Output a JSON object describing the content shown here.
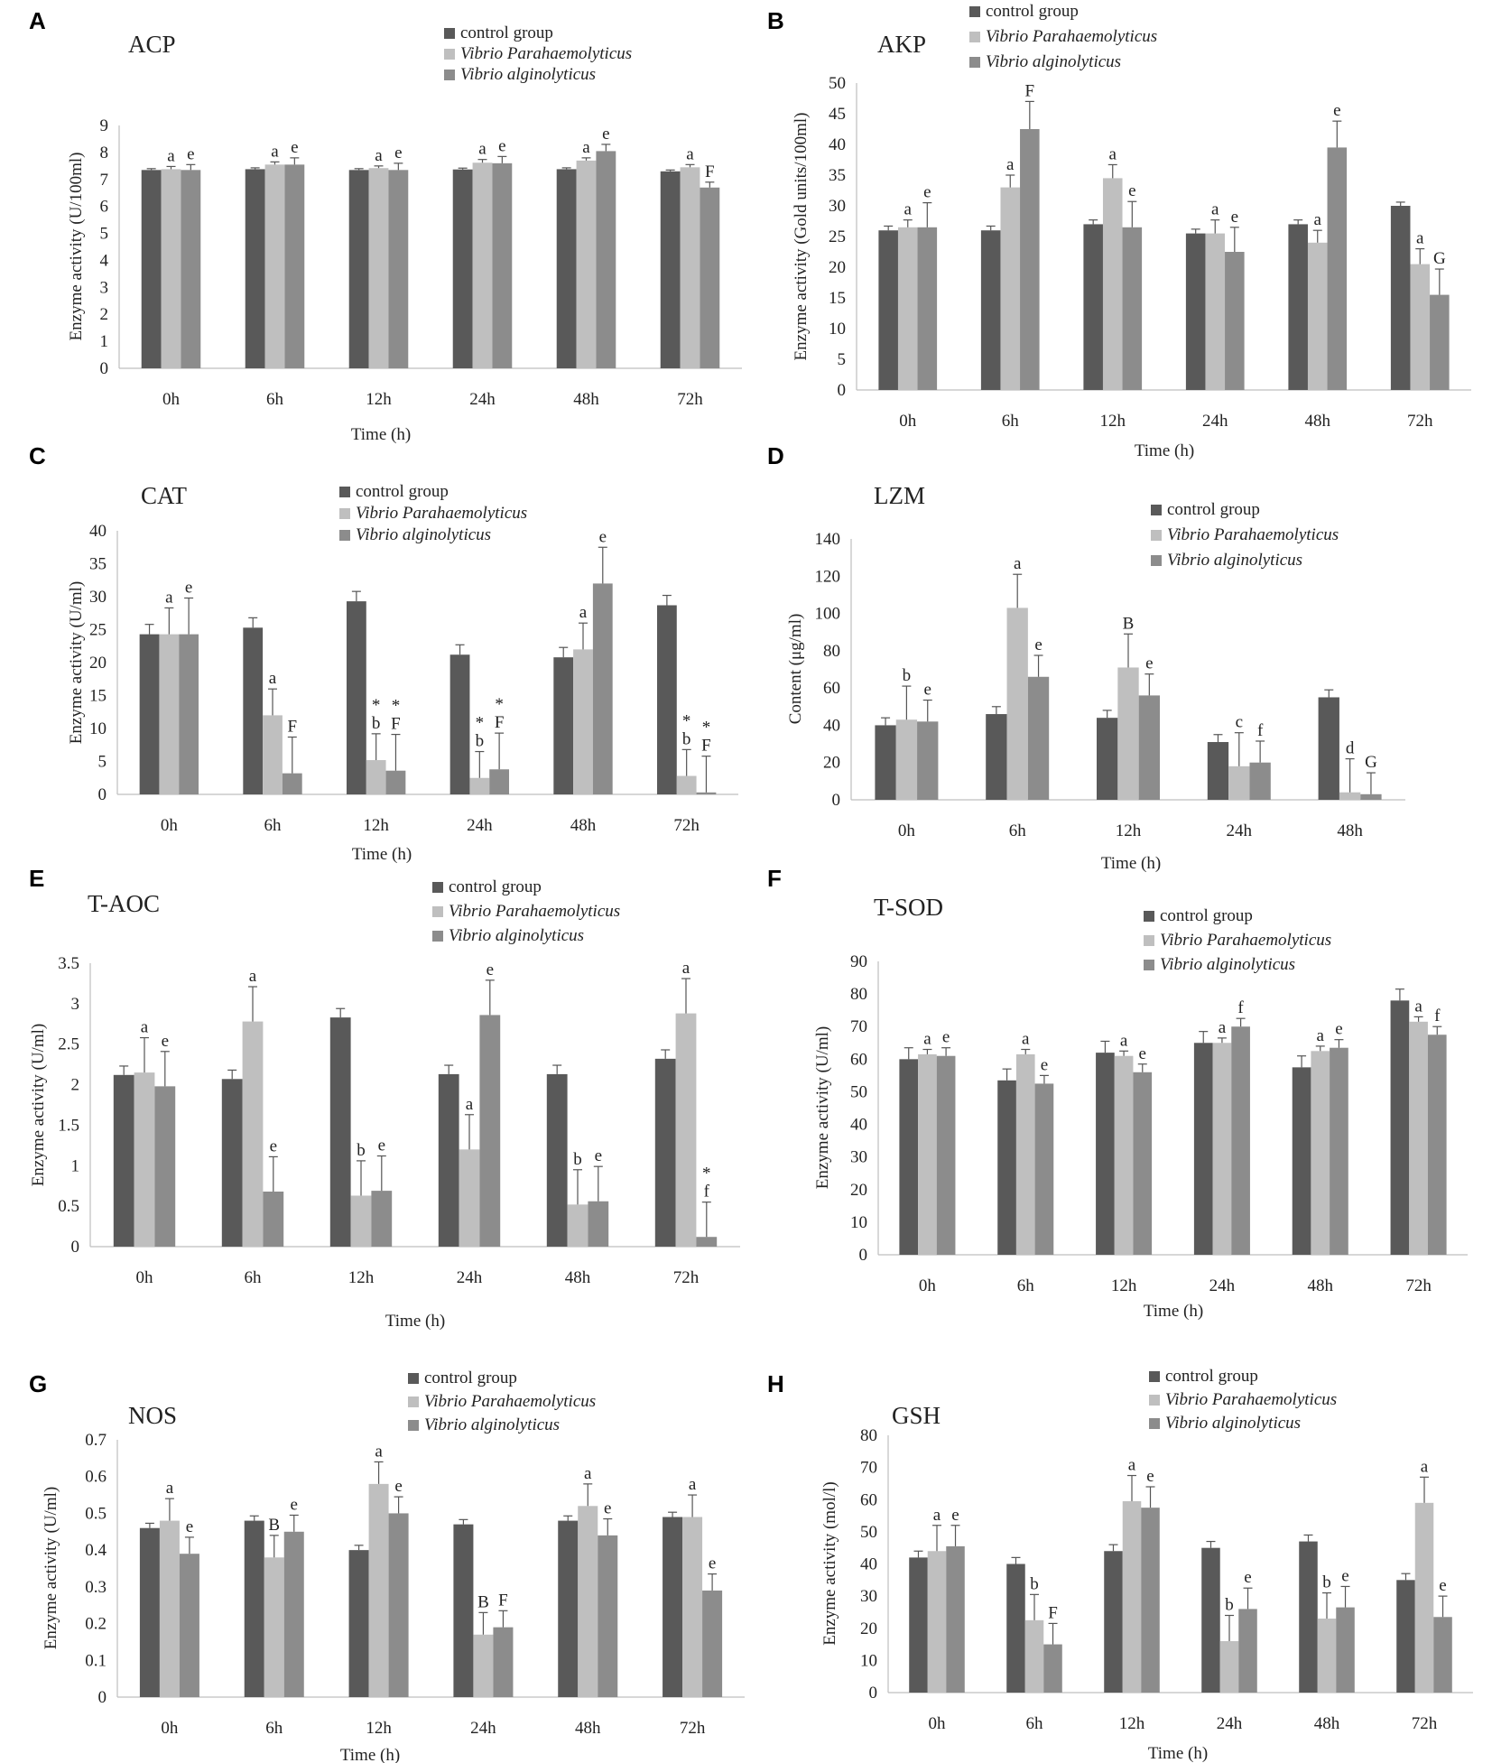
{
  "figure": {
    "series_names": [
      "control group",
      "Vibrio Parahaemolyticus",
      "Vibrio alginolyticus"
    ],
    "series_colors": [
      "#595959",
      "#bfbfbf",
      "#8c8c8c"
    ],
    "xlabel_common": "Time (h)"
  },
  "chart_data": [
    {
      "panel": "A",
      "type": "bar",
      "title": "ACP",
      "categories": [
        "0h",
        "6h",
        "12h",
        "24h",
        "48h",
        "72h"
      ],
      "ylabel": "Enzyme activity (U/100ml)",
      "xlabel": "Time (h)",
      "ylim": [
        0,
        9
      ],
      "yticks": [
        0,
        1,
        2,
        3,
        4,
        5,
        6,
        7,
        8,
        9
      ],
      "series": [
        {
          "name": "control group",
          "values": [
            7.35,
            7.38,
            7.35,
            7.37,
            7.38,
            7.3
          ],
          "errors": [
            0.05,
            0.05,
            0.05,
            0.05,
            0.05,
            0.05
          ],
          "labels": [
            "",
            "",
            "",
            "",
            "",
            ""
          ]
        },
        {
          "name": "Vibrio Parahaemolyticus",
          "values": [
            7.38,
            7.55,
            7.42,
            7.62,
            7.7,
            7.45
          ],
          "errors": [
            0.1,
            0.1,
            0.08,
            0.12,
            0.1,
            0.1
          ],
          "labels": [
            "a",
            "a",
            "a",
            "a",
            "a",
            "a"
          ]
        },
        {
          "name": "Vibrio alginolyticus",
          "values": [
            7.35,
            7.55,
            7.35,
            7.6,
            8.05,
            6.7
          ],
          "errors": [
            0.2,
            0.25,
            0.25,
            0.25,
            0.25,
            0.2
          ],
          "labels": [
            "e",
            "e",
            "e",
            "e",
            "e",
            "F"
          ]
        }
      ]
    },
    {
      "panel": "B",
      "type": "bar",
      "title": "AKP",
      "categories": [
        "0h",
        "6h",
        "12h",
        "24h",
        "48h",
        "72h"
      ],
      "ylabel": "Enzyme activity (Gold units/100ml)",
      "xlabel": "Time (h)",
      "ylim": [
        0,
        50
      ],
      "yticks": [
        0,
        5,
        10,
        15,
        20,
        25,
        30,
        35,
        40,
        45,
        50
      ],
      "series": [
        {
          "name": "control group",
          "values": [
            26,
            26,
            27,
            25.5,
            27,
            30
          ],
          "errors": [
            0.7,
            0.7,
            0.7,
            0.7,
            0.7,
            0.6
          ],
          "labels": [
            "",
            "",
            "",
            "",
            "",
            ""
          ]
        },
        {
          "name": "Vibrio Parahaemolyticus",
          "values": [
            26.5,
            33,
            34.5,
            25.5,
            24,
            20.5
          ],
          "errors": [
            1.2,
            2,
            2.2,
            2.2,
            2,
            2.5
          ],
          "labels": [
            "a",
            "a",
            "a",
            "a",
            "a",
            "a"
          ]
        },
        {
          "name": "Vibrio alginolyticus",
          "values": [
            26.5,
            42.5,
            26.5,
            22.5,
            39.5,
            15.5
          ],
          "errors": [
            4,
            4.5,
            4.2,
            4,
            4.3,
            4.2
          ],
          "labels": [
            "e",
            "F",
            "e",
            "e",
            "e",
            "G"
          ]
        }
      ]
    },
    {
      "panel": "C",
      "type": "bar",
      "title": "CAT",
      "categories": [
        "0h",
        "6h",
        "12h",
        "24h",
        "48h",
        "72h"
      ],
      "ylabel": "Enzyme activity (U/ml)",
      "xlabel": "Time (h)",
      "ylim": [
        0,
        40
      ],
      "yticks": [
        0,
        5,
        10,
        15,
        20,
        25,
        30,
        35,
        40
      ],
      "series": [
        {
          "name": "control group",
          "values": [
            24.3,
            25.3,
            29.3,
            21.2,
            20.8,
            28.7
          ],
          "errors": [
            1.5,
            1.5,
            1.5,
            1.5,
            1.5,
            1.5
          ],
          "labels": [
            "",
            "",
            "",
            "",
            "",
            ""
          ]
        },
        {
          "name": "Vibrio Parahaemolyticus",
          "values": [
            24.3,
            12,
            5.2,
            2.5,
            22,
            2.8
          ],
          "errors": [
            4,
            4,
            4,
            4,
            4,
            4
          ],
          "labels": [
            "a",
            "a",
            "b",
            "b",
            "a",
            "b"
          ],
          "stars": [
            false,
            false,
            true,
            true,
            false,
            true
          ]
        },
        {
          "name": "Vibrio alginolyticus",
          "values": [
            24.3,
            3.2,
            3.6,
            3.8,
            32,
            0.3
          ],
          "errors": [
            5.5,
            5.5,
            5.5,
            5.5,
            5.5,
            5.5
          ],
          "labels": [
            "e",
            "F",
            "F",
            "F",
            "e",
            "F"
          ],
          "stars": [
            false,
            false,
            true,
            true,
            false,
            true
          ]
        }
      ]
    },
    {
      "panel": "D",
      "type": "bar",
      "title": "LZM",
      "categories": [
        "0h",
        "6h",
        "12h",
        "24h",
        "48h"
      ],
      "ylabel": "Content (μg/ml)",
      "xlabel": "Time (h)",
      "ylim": [
        0,
        140
      ],
      "yticks": [
        0,
        20,
        40,
        60,
        80,
        100,
        120,
        140
      ],
      "series": [
        {
          "name": "control group",
          "values": [
            40,
            46,
            44,
            31,
            55
          ],
          "errors": [
            4,
            4,
            4,
            4,
            4
          ],
          "labels": [
            "",
            "",
            "",
            "",
            ""
          ]
        },
        {
          "name": "Vibrio Parahaemolyticus",
          "values": [
            43,
            103,
            71,
            18,
            4
          ],
          "errors": [
            18,
            18,
            18,
            18,
            18
          ],
          "labels": [
            "b",
            "a",
            "B",
            "c",
            "d"
          ]
        },
        {
          "name": "Vibrio alginolyticus",
          "values": [
            42,
            66,
            56,
            20,
            3
          ],
          "errors": [
            11.5,
            11.5,
            11.5,
            11.5,
            11.5
          ],
          "labels": [
            "e",
            "e",
            "e",
            "f",
            "G"
          ]
        }
      ]
    },
    {
      "panel": "E",
      "type": "bar",
      "title": "T-AOC",
      "categories": [
        "0h",
        "6h",
        "12h",
        "24h",
        "48h",
        "72h"
      ],
      "ylabel": "Enzyme activity (U/ml)",
      "xlabel": "Time (h)",
      "ylim": [
        0,
        3.5
      ],
      "yticks": [
        0,
        0.5,
        1,
        1.5,
        2,
        2.5,
        3,
        3.5
      ],
      "series": [
        {
          "name": "control group",
          "values": [
            2.12,
            2.07,
            2.83,
            2.13,
            2.13,
            2.32
          ],
          "errors": [
            0.11,
            0.11,
            0.11,
            0.11,
            0.11,
            0.11
          ],
          "labels": [
            "",
            "",
            "",
            "",
            "",
            ""
          ]
        },
        {
          "name": "Vibrio Parahaemolyticus",
          "values": [
            2.15,
            2.78,
            0.63,
            1.2,
            0.52,
            2.88
          ],
          "errors": [
            0.43,
            0.43,
            0.43,
            0.43,
            0.43,
            0.43
          ],
          "labels": [
            "a",
            "a",
            "b",
            "a",
            "b",
            "a"
          ]
        },
        {
          "name": "Vibrio alginolyticus",
          "values": [
            1.98,
            0.68,
            0.69,
            2.86,
            0.56,
            0.12
          ],
          "errors": [
            0.43,
            0.43,
            0.43,
            0.43,
            0.43,
            0.43
          ],
          "labels": [
            "e",
            "e",
            "e",
            "e",
            "e",
            "f"
          ],
          "stars": [
            false,
            false,
            false,
            false,
            false,
            true
          ]
        }
      ]
    },
    {
      "panel": "F",
      "type": "bar",
      "title": "T-SOD",
      "categories": [
        "0h",
        "6h",
        "12h",
        "24h",
        "48h",
        "72h"
      ],
      "ylabel": "Enzyme activity (U/ml)",
      "xlabel": "Time (h)",
      "ylim": [
        0,
        90
      ],
      "yticks": [
        0,
        10,
        20,
        30,
        40,
        50,
        60,
        70,
        80,
        90
      ],
      "series": [
        {
          "name": "control group",
          "values": [
            60,
            53.5,
            62,
            65,
            57.5,
            78
          ],
          "errors": [
            3.5,
            3.5,
            3.5,
            3.5,
            3.5,
            3.5
          ],
          "labels": [
            "",
            "",
            "",
            "",
            "",
            ""
          ]
        },
        {
          "name": "Vibrio Parahaemolyticus",
          "values": [
            61.5,
            61.5,
            61,
            65,
            62.5,
            71.5
          ],
          "errors": [
            1.5,
            1.5,
            1.5,
            1.5,
            1.5,
            1.5
          ],
          "labels": [
            "a",
            "a",
            "a",
            "a",
            "a",
            "a"
          ]
        },
        {
          "name": "Vibrio alginolyticus",
          "values": [
            61,
            52.5,
            56,
            70,
            63.5,
            67.5
          ],
          "errors": [
            2.5,
            2.5,
            2.5,
            2.5,
            2.5,
            2.5
          ],
          "labels": [
            "e",
            "e",
            "e",
            "f",
            "e",
            "f"
          ]
        }
      ]
    },
    {
      "panel": "G",
      "type": "bar",
      "title": "NOS",
      "categories": [
        "0h",
        "6h",
        "12h",
        "24h",
        "48h",
        "72h"
      ],
      "ylabel": "Enzyme activity (U/ml)",
      "xlabel": "Time (h)",
      "ylim": [
        0,
        0.7
      ],
      "yticks": [
        0,
        0.1,
        0.2,
        0.3,
        0.4,
        0.5,
        0.6,
        0.7
      ],
      "series": [
        {
          "name": "control group",
          "values": [
            0.46,
            0.48,
            0.4,
            0.47,
            0.48,
            0.49
          ],
          "errors": [
            0.013,
            0.013,
            0.013,
            0.013,
            0.013,
            0.013
          ],
          "labels": [
            "",
            "",
            "",
            "",
            "",
            ""
          ]
        },
        {
          "name": "Vibrio Parahaemolyticus",
          "values": [
            0.48,
            0.38,
            0.58,
            0.17,
            0.52,
            0.49
          ],
          "errors": [
            0.06,
            0.06,
            0.06,
            0.06,
            0.06,
            0.06
          ],
          "labels": [
            "a",
            "B",
            "a",
            "B",
            "a",
            "a"
          ]
        },
        {
          "name": "Vibrio alginolyticus",
          "values": [
            0.39,
            0.45,
            0.5,
            0.19,
            0.44,
            0.29
          ],
          "errors": [
            0.045,
            0.045,
            0.045,
            0.045,
            0.045,
            0.045
          ],
          "labels": [
            "e",
            "e",
            "e",
            "F",
            "e",
            "e"
          ]
        }
      ]
    },
    {
      "panel": "H",
      "type": "bar",
      "title": "GSH",
      "categories": [
        "0h",
        "6h",
        "12h",
        "24h",
        "48h",
        "72h"
      ],
      "ylabel": "Enzyme activity (mol/l)",
      "xlabel": "Time (h)",
      "ylim": [
        0,
        80
      ],
      "yticks": [
        0,
        10,
        20,
        30,
        40,
        50,
        60,
        70,
        80
      ],
      "series": [
        {
          "name": "control group",
          "values": [
            42,
            40,
            44,
            45,
            47,
            35
          ],
          "errors": [
            2,
            2,
            2,
            2,
            2,
            2
          ],
          "labels": [
            "",
            "",
            "",
            "",
            "",
            ""
          ]
        },
        {
          "name": "Vibrio Parahaemolyticus",
          "values": [
            44,
            22.5,
            59.5,
            16,
            23,
            59
          ],
          "errors": [
            8,
            8,
            8,
            8,
            8,
            8
          ],
          "labels": [
            "a",
            "b",
            "a",
            "b",
            "b",
            "a"
          ]
        },
        {
          "name": "Vibrio alginolyticus",
          "values": [
            45.5,
            15,
            57.5,
            26,
            26.5,
            23.5
          ],
          "errors": [
            6.5,
            6.5,
            6.5,
            6.5,
            6.5,
            6.5
          ],
          "labels": [
            "e",
            "F",
            "e",
            "e",
            "e",
            "e"
          ]
        }
      ]
    }
  ]
}
